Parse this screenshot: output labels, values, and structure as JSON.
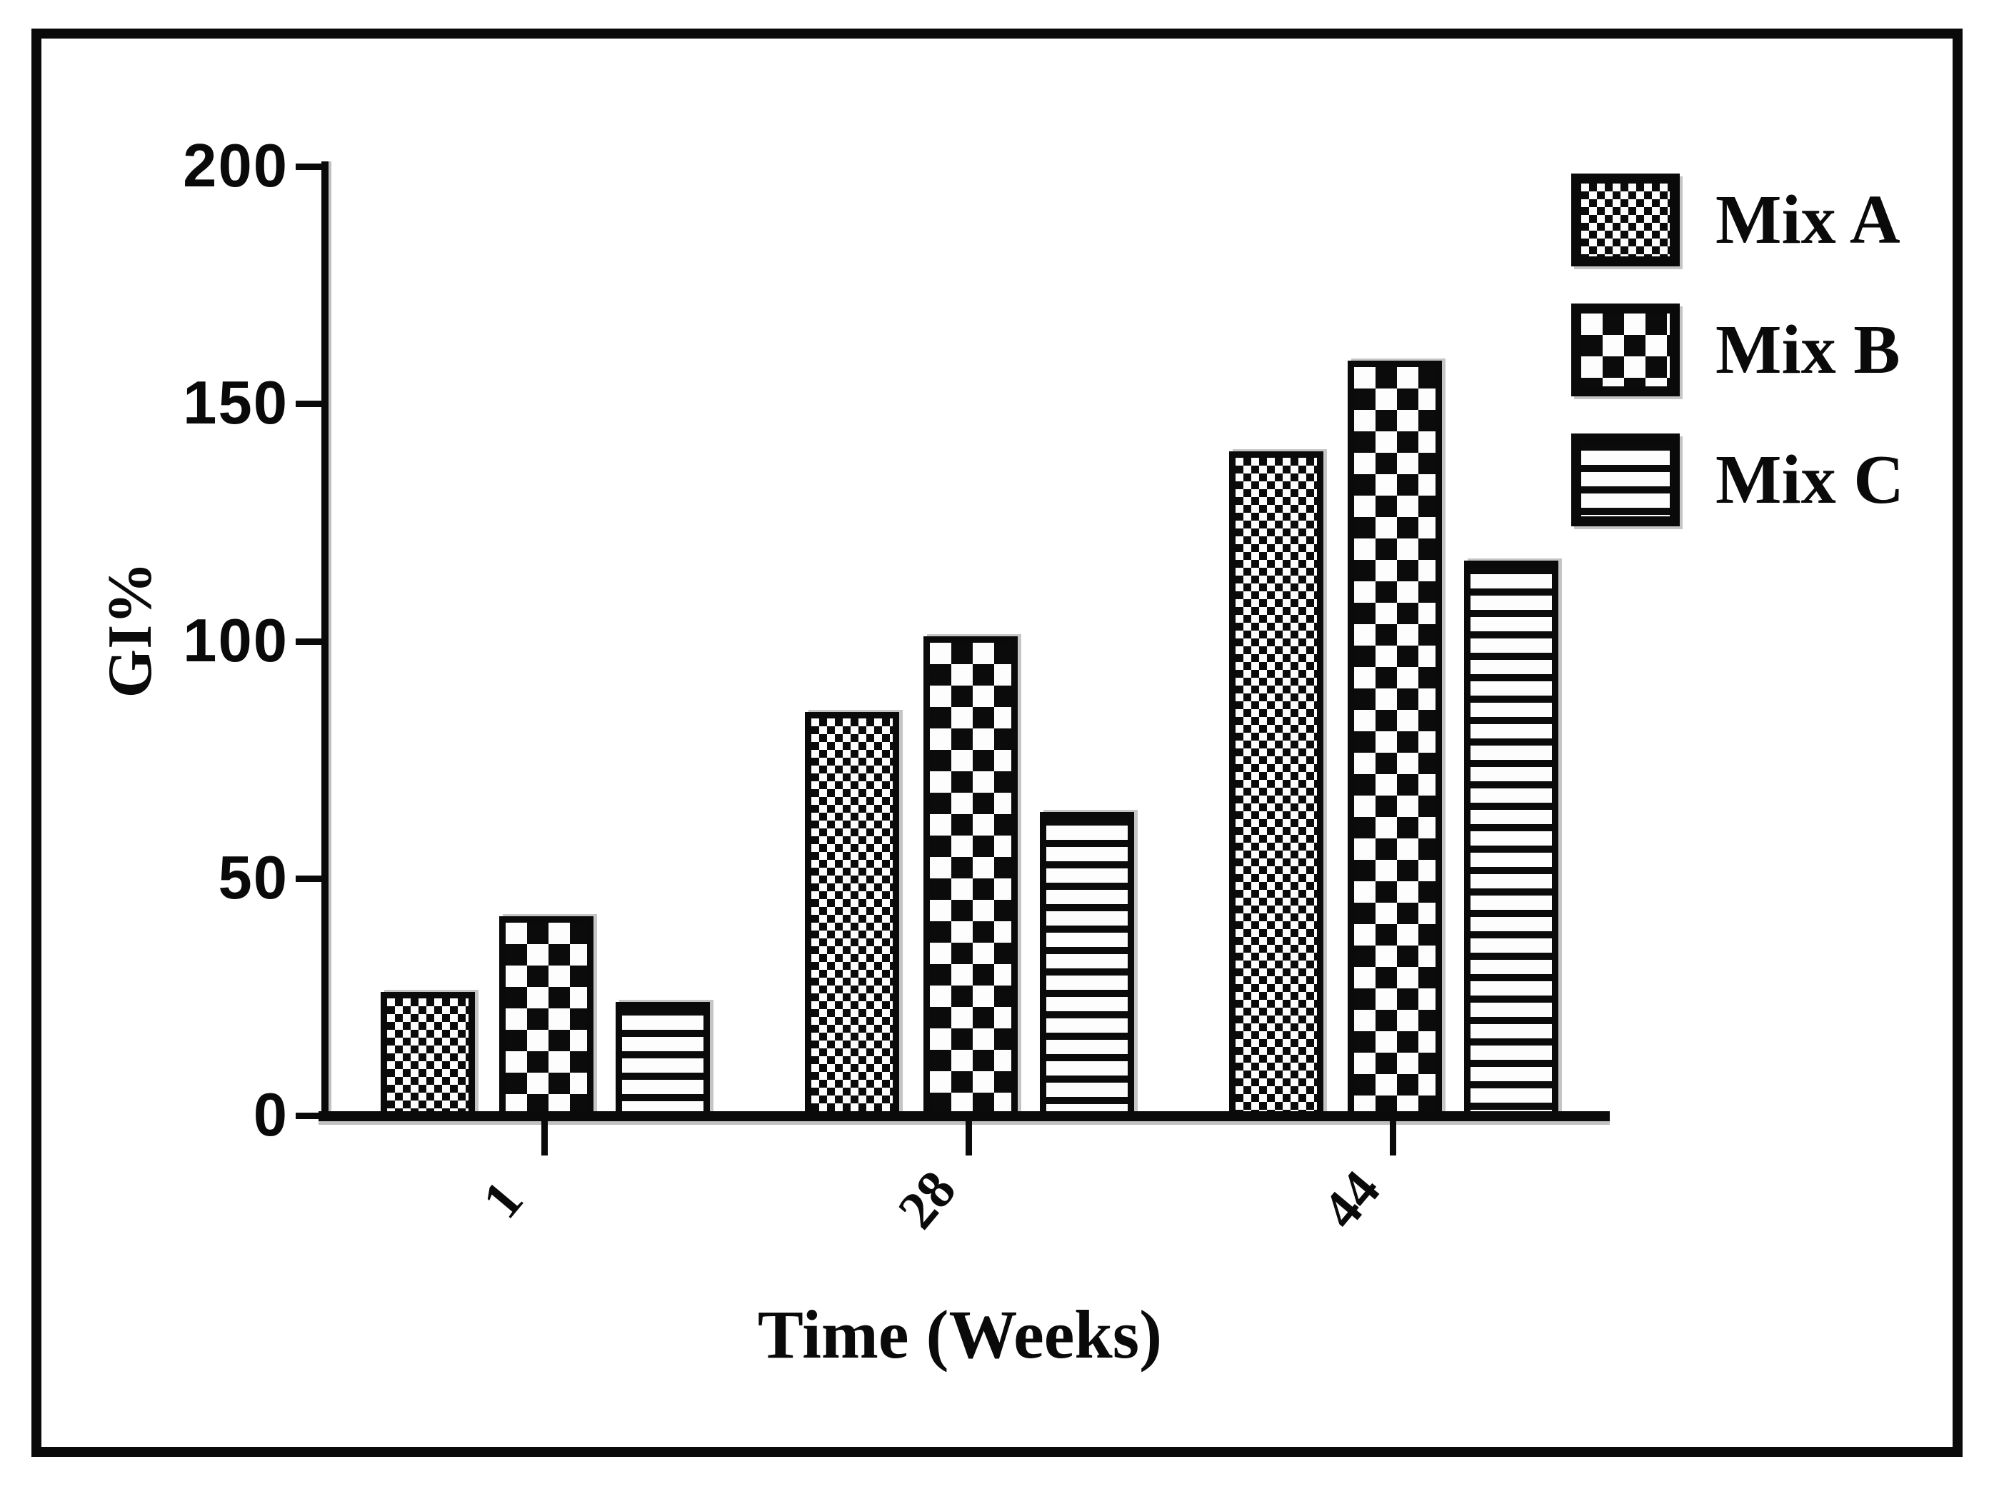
{
  "figure": {
    "background": "#ffffff",
    "frame_color": "#0a0a0a",
    "ink_color": "#0a0a0a"
  },
  "chart_data": {
    "type": "bar",
    "title": "",
    "xlabel": "Time (Weeks)",
    "ylabel": "GI%",
    "categories": [
      "1",
      "28",
      "44"
    ],
    "series": [
      {
        "name": "Mix A",
        "pattern": "fine-checkerboard",
        "values": [
          26,
          85,
          140
        ]
      },
      {
        "name": "Mix B",
        "pattern": "coarse-checkerboard",
        "values": [
          42,
          101,
          159
        ]
      },
      {
        "name": "Mix C",
        "pattern": "horizontal-stripes",
        "values": [
          24,
          64,
          117
        ]
      }
    ],
    "ylim": [
      0,
      200
    ],
    "yticks": [
      0,
      50,
      100,
      150,
      200
    ],
    "xtick_rotation_deg": -50,
    "legend_position": "top-right",
    "grid": false,
    "bar_fill": "black-and-white-patterns"
  }
}
